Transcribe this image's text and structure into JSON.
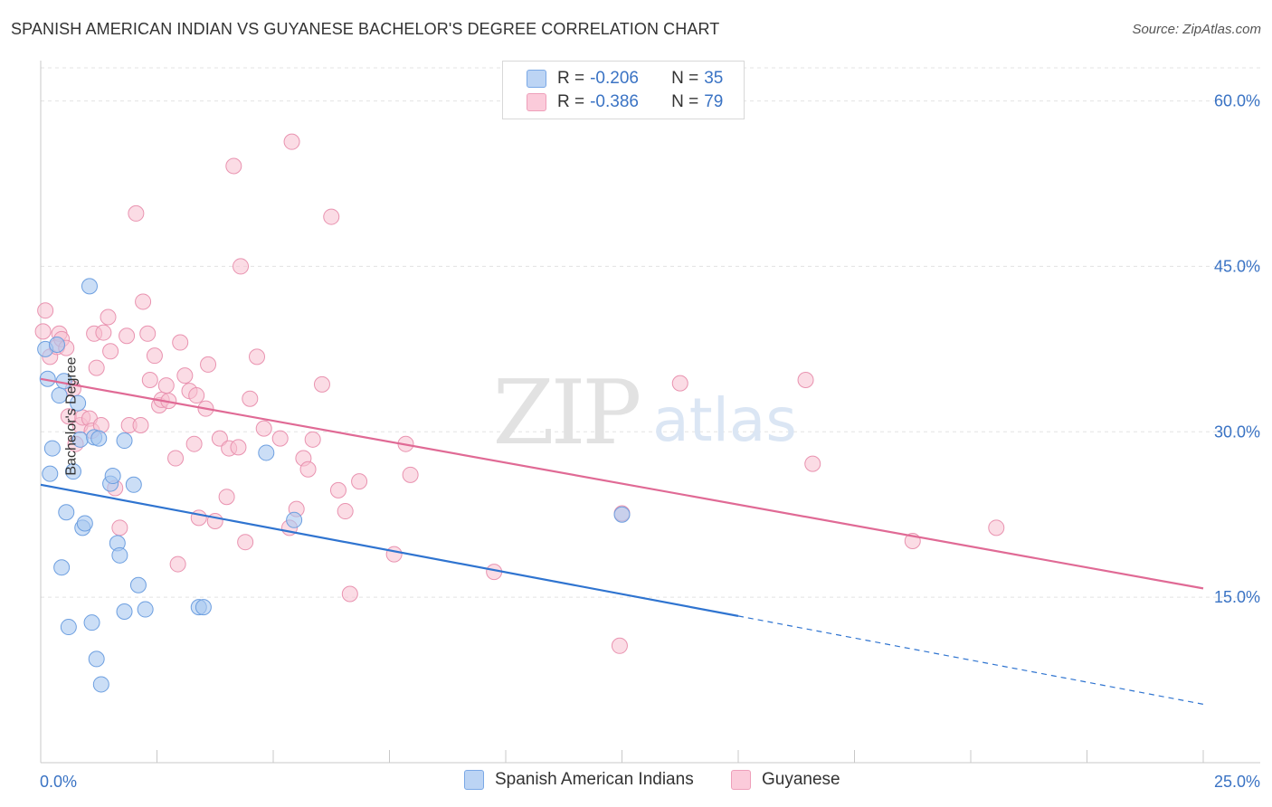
{
  "header": {
    "title": "SPANISH AMERICAN INDIAN VS GUYANESE BACHELOR'S DEGREE CORRELATION CHART",
    "source": "Source: ZipAtlas.com"
  },
  "legend": {
    "series1": {
      "r_label": "R =",
      "r_value": "-0.206",
      "n_label": "N =",
      "n_value": "35"
    },
    "series2": {
      "r_label": "R =",
      "r_value": "-0.386",
      "n_label": "N =",
      "n_value": "79"
    }
  },
  "bottom_legend": {
    "series1": "Spanish American Indians",
    "series2": "Guyanese"
  },
  "colors": {
    "series1_fill": "#a9c8f0",
    "series1_stroke": "#6d9fe0",
    "series1_line": "#2f74d0",
    "series2_fill": "#f7bfd0",
    "series2_stroke": "#e993b0",
    "series2_line": "#e06a95",
    "axis_text": "#3a73c4",
    "grid": "#e3e3e3"
  },
  "chart_data": {
    "type": "scatter",
    "title": "SPANISH AMERICAN INDIAN VS GUYANESE BACHELOR'S DEGREE CORRELATION CHART",
    "xlabel": "",
    "ylabel": "Bachelor's Degree",
    "xlim": [
      0,
      25
    ],
    "ylim": [
      0,
      63
    ],
    "x_tick_labels": [
      "0.0%",
      "25.0%"
    ],
    "y_ticks": [
      15,
      30,
      45,
      60
    ],
    "y_tick_labels": [
      "15.0%",
      "30.0%",
      "45.0%",
      "60.0%"
    ],
    "watermark": {
      "zip": "ZIP",
      "atlas": "atlas"
    },
    "series": [
      {
        "name": "Spanish American Indians",
        "r": -0.206,
        "n": 35,
        "trend": {
          "x0": 0,
          "y0": 25.2,
          "x1": 15,
          "y1": 13.3,
          "x_dashed_end": 25,
          "y_dashed_end": 5.3
        },
        "points": [
          [
            0.1,
            37.5
          ],
          [
            0.15,
            34.8
          ],
          [
            0.2,
            26.2
          ],
          [
            0.25,
            28.5
          ],
          [
            0.35,
            37.9
          ],
          [
            0.4,
            33.3
          ],
          [
            0.45,
            17.7
          ],
          [
            0.5,
            34.6
          ],
          [
            0.55,
            22.7
          ],
          [
            0.6,
            12.3
          ],
          [
            0.7,
            26.4
          ],
          [
            0.8,
            32.6
          ],
          [
            0.85,
            29.3
          ],
          [
            0.9,
            21.3
          ],
          [
            0.95,
            21.7
          ],
          [
            1.05,
            43.2
          ],
          [
            1.1,
            12.7
          ],
          [
            1.15,
            29.5
          ],
          [
            1.2,
            9.4
          ],
          [
            1.25,
            29.4
          ],
          [
            1.3,
            7.1
          ],
          [
            1.5,
            25.3
          ],
          [
            1.55,
            26.0
          ],
          [
            1.65,
            19.9
          ],
          [
            1.7,
            18.8
          ],
          [
            1.8,
            13.7
          ],
          [
            1.8,
            29.2
          ],
          [
            2.0,
            25.2
          ],
          [
            2.1,
            16.1
          ],
          [
            2.25,
            13.9
          ],
          [
            3.4,
            14.1
          ],
          [
            3.5,
            14.1
          ],
          [
            4.85,
            28.1
          ],
          [
            5.45,
            22.0
          ],
          [
            12.5,
            22.5
          ]
        ]
      },
      {
        "name": "Guyanese",
        "r": -0.386,
        "n": 79,
        "trend": {
          "x0": 0,
          "y0": 34.8,
          "x1": 25,
          "y1": 15.8
        },
        "points": [
          [
            0.05,
            39.1
          ],
          [
            0.1,
            41.0
          ],
          [
            0.2,
            36.8
          ],
          [
            0.35,
            37.7
          ],
          [
            0.4,
            38.9
          ],
          [
            0.45,
            38.4
          ],
          [
            0.55,
            37.6
          ],
          [
            0.6,
            31.4
          ],
          [
            0.7,
            33.9
          ],
          [
            0.75,
            28.9
          ],
          [
            0.85,
            30.6
          ],
          [
            0.9,
            31.3
          ],
          [
            1.05,
            31.2
          ],
          [
            1.1,
            30.1
          ],
          [
            1.15,
            38.9
          ],
          [
            1.2,
            35.8
          ],
          [
            1.3,
            30.6
          ],
          [
            1.35,
            39.0
          ],
          [
            1.45,
            40.4
          ],
          [
            1.5,
            37.3
          ],
          [
            1.6,
            24.9
          ],
          [
            1.7,
            21.3
          ],
          [
            1.85,
            38.7
          ],
          [
            1.9,
            30.6
          ],
          [
            2.05,
            49.8
          ],
          [
            2.15,
            30.6
          ],
          [
            2.2,
            41.8
          ],
          [
            2.3,
            38.9
          ],
          [
            2.35,
            34.7
          ],
          [
            2.45,
            36.9
          ],
          [
            2.55,
            32.4
          ],
          [
            2.6,
            32.9
          ],
          [
            2.7,
            34.2
          ],
          [
            2.75,
            32.8
          ],
          [
            2.9,
            27.6
          ],
          [
            2.95,
            18.0
          ],
          [
            3.0,
            38.1
          ],
          [
            3.1,
            35.1
          ],
          [
            3.2,
            33.7
          ],
          [
            3.3,
            28.9
          ],
          [
            3.35,
            33.3
          ],
          [
            3.4,
            22.2
          ],
          [
            3.55,
            32.1
          ],
          [
            3.6,
            36.1
          ],
          [
            3.75,
            21.9
          ],
          [
            3.85,
            29.4
          ],
          [
            4.0,
            24.1
          ],
          [
            4.05,
            28.5
          ],
          [
            4.15,
            54.1
          ],
          [
            4.25,
            28.6
          ],
          [
            4.3,
            45.0
          ],
          [
            4.4,
            20.0
          ],
          [
            4.5,
            33.0
          ],
          [
            4.65,
            36.8
          ],
          [
            4.8,
            30.3
          ],
          [
            5.15,
            29.4
          ],
          [
            5.35,
            21.3
          ],
          [
            5.5,
            23.0
          ],
          [
            5.65,
            27.6
          ],
          [
            5.75,
            26.6
          ],
          [
            5.85,
            29.3
          ],
          [
            6.05,
            34.3
          ],
          [
            6.25,
            49.5
          ],
          [
            6.4,
            24.7
          ],
          [
            6.55,
            22.8
          ],
          [
            6.65,
            15.3
          ],
          [
            6.85,
            25.5
          ],
          [
            7.6,
            18.9
          ],
          [
            7.85,
            28.9
          ],
          [
            7.95,
            26.1
          ],
          [
            9.75,
            17.3
          ],
          [
            12.45,
            10.6
          ],
          [
            12.5,
            22.6
          ],
          [
            13.75,
            34.4
          ],
          [
            16.45,
            34.7
          ],
          [
            16.6,
            27.1
          ],
          [
            18.75,
            20.1
          ],
          [
            20.55,
            21.3
          ],
          [
            5.4,
            56.3
          ]
        ]
      }
    ]
  }
}
